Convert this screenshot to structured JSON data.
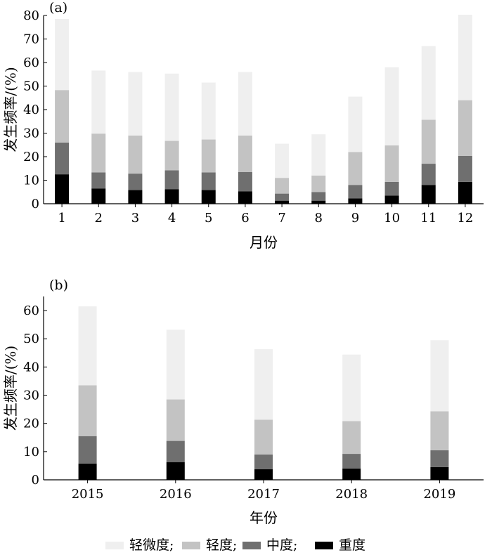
{
  "legend": {
    "items": [
      {
        "label": "轻微度;",
        "color": "#efefef"
      },
      {
        "label": "轻度;",
        "color": "#c3c3c3"
      },
      {
        "label": "中度;",
        "color": "#6f6f6f"
      },
      {
        "label": "重度",
        "color": "#000000"
      }
    ]
  },
  "chart_data": [
    {
      "type": "bar",
      "stacked": true,
      "panel_label": "(a)",
      "xlabel": "月份",
      "ylabel": "发生频率/(%)",
      "ylim": [
        0,
        80
      ],
      "yticks": [
        0,
        10,
        20,
        30,
        40,
        50,
        60,
        70,
        80
      ],
      "categories": [
        "1",
        "2",
        "3",
        "4",
        "5",
        "6",
        "7",
        "8",
        "9",
        "10",
        "11",
        "12"
      ],
      "series": [
        {
          "name": "重度",
          "color": "#000000",
          "values": [
            12.5,
            6.5,
            5.8,
            6.2,
            5.8,
            5.3,
            1.3,
            1.3,
            2.3,
            3.5,
            8.0,
            9.3
          ]
        },
        {
          "name": "中度",
          "color": "#6f6f6f",
          "values": [
            13.5,
            6.8,
            7.0,
            8.0,
            7.5,
            8.2,
            3.0,
            3.7,
            5.7,
            5.8,
            9.0,
            11.0
          ]
        },
        {
          "name": "轻度",
          "color": "#c3c3c3",
          "values": [
            22.3,
            16.5,
            16.2,
            12.5,
            14.0,
            15.5,
            6.7,
            7.0,
            14.0,
            15.5,
            18.7,
            23.7
          ]
        },
        {
          "name": "轻微度",
          "color": "#efefef",
          "values": [
            30.2,
            26.8,
            27.0,
            28.6,
            24.2,
            27.0,
            14.5,
            17.5,
            23.5,
            33.2,
            31.3,
            36.3
          ]
        }
      ]
    },
    {
      "type": "bar",
      "stacked": true,
      "panel_label": "(b)",
      "xlabel": "年份",
      "ylabel": "发生频率/(%)",
      "ylim": [
        0,
        65
      ],
      "yticks": [
        0,
        10,
        20,
        30,
        40,
        50,
        60
      ],
      "categories": [
        "2015",
        "2016",
        "2017",
        "2018",
        "2019"
      ],
      "series": [
        {
          "name": "重度",
          "color": "#000000",
          "values": [
            5.8,
            6.3,
            3.8,
            4.0,
            4.5
          ]
        },
        {
          "name": "中度",
          "color": "#6f6f6f",
          "values": [
            9.7,
            7.5,
            5.2,
            5.2,
            6.0
          ]
        },
        {
          "name": "轻度",
          "color": "#c3c3c3",
          "values": [
            18.0,
            14.7,
            12.3,
            11.6,
            13.8
          ]
        },
        {
          "name": "轻微度",
          "color": "#efefef",
          "values": [
            28.0,
            24.7,
            25.0,
            23.6,
            25.2
          ]
        }
      ]
    }
  ]
}
